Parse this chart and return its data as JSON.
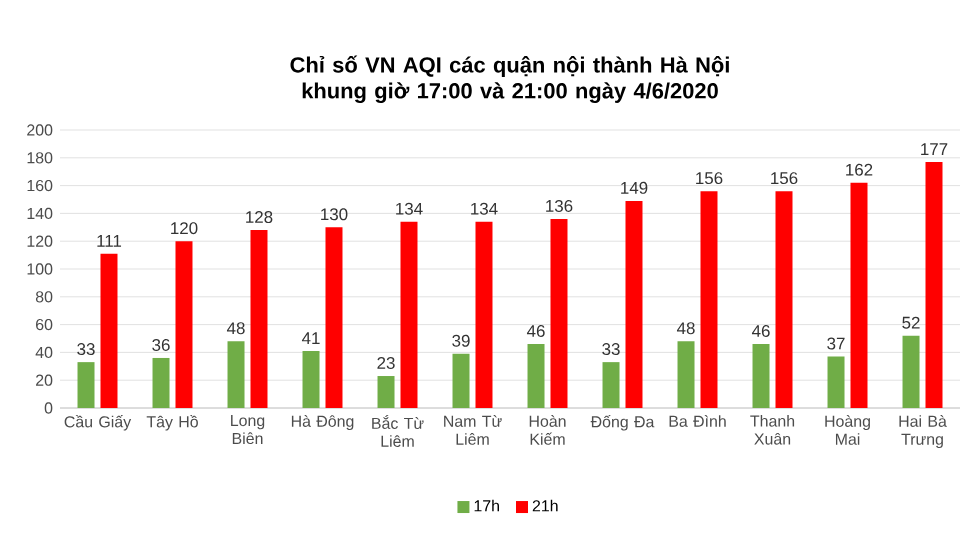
{
  "chart_data": {
    "type": "bar",
    "title": "Chỉ số VN AQI các quận nội thành Hà Nội khung giờ 17:00 và 21:00 ngày 4/6/2020",
    "categories": [
      "Cầu Giấy",
      "Tây Hồ",
      "Long Biên",
      "Hà Đông",
      "Bắc Từ Liêm",
      "Nam Từ Liêm",
      "Hoàn Kiếm",
      "Đống Đa",
      "Ba Đình",
      "Thanh Xuân",
      "Hoàng Mai",
      "Hai Bà Trưng"
    ],
    "series": [
      {
        "name": "17h",
        "color": "#70ad47",
        "values": [
          33,
          36,
          48,
          41,
          23,
          39,
          46,
          33,
          48,
          46,
          37,
          52
        ]
      },
      {
        "name": "21h",
        "color": "#ff0000",
        "values": [
          111,
          120,
          128,
          130,
          134,
          134,
          136,
          149,
          156,
          156,
          162,
          177
        ]
      }
    ],
    "ylim": [
      0,
      200
    ],
    "yticks": [
      0,
      20,
      40,
      60,
      80,
      100,
      120,
      140,
      160,
      180,
      200
    ],
    "grid": "y",
    "legend": "bottom",
    "data_labels": true
  }
}
